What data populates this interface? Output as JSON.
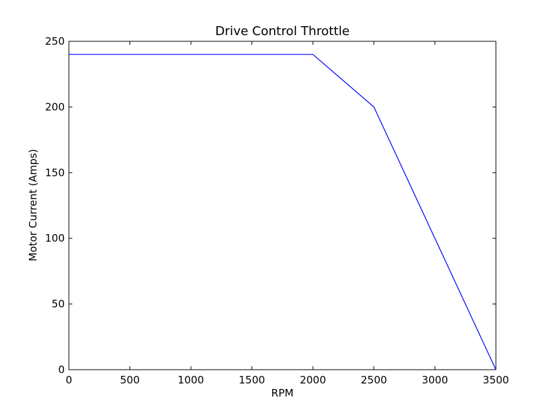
{
  "chart_data": {
    "type": "line",
    "title": "Drive Control Throttle",
    "xlabel": "RPM",
    "ylabel": "Motor Current (Amps)",
    "xlim": [
      0,
      3500
    ],
    "ylim": [
      0,
      250
    ],
    "xticks": [
      0,
      500,
      1000,
      1500,
      2000,
      2500,
      3000,
      3500
    ],
    "yticks": [
      0,
      50,
      100,
      150,
      200,
      250
    ],
    "xtick_labels": [
      "0",
      "500",
      "1000",
      "1500",
      "2000",
      "2500",
      "3000",
      "3500"
    ],
    "ytick_labels": [
      "0",
      "50",
      "100",
      "150",
      "200",
      "250"
    ],
    "grid": false,
    "series": [
      {
        "color": "#0000ff",
        "x": [
          0,
          2000,
          2500,
          3500
        ],
        "y": [
          240,
          240,
          200,
          0
        ]
      }
    ]
  }
}
